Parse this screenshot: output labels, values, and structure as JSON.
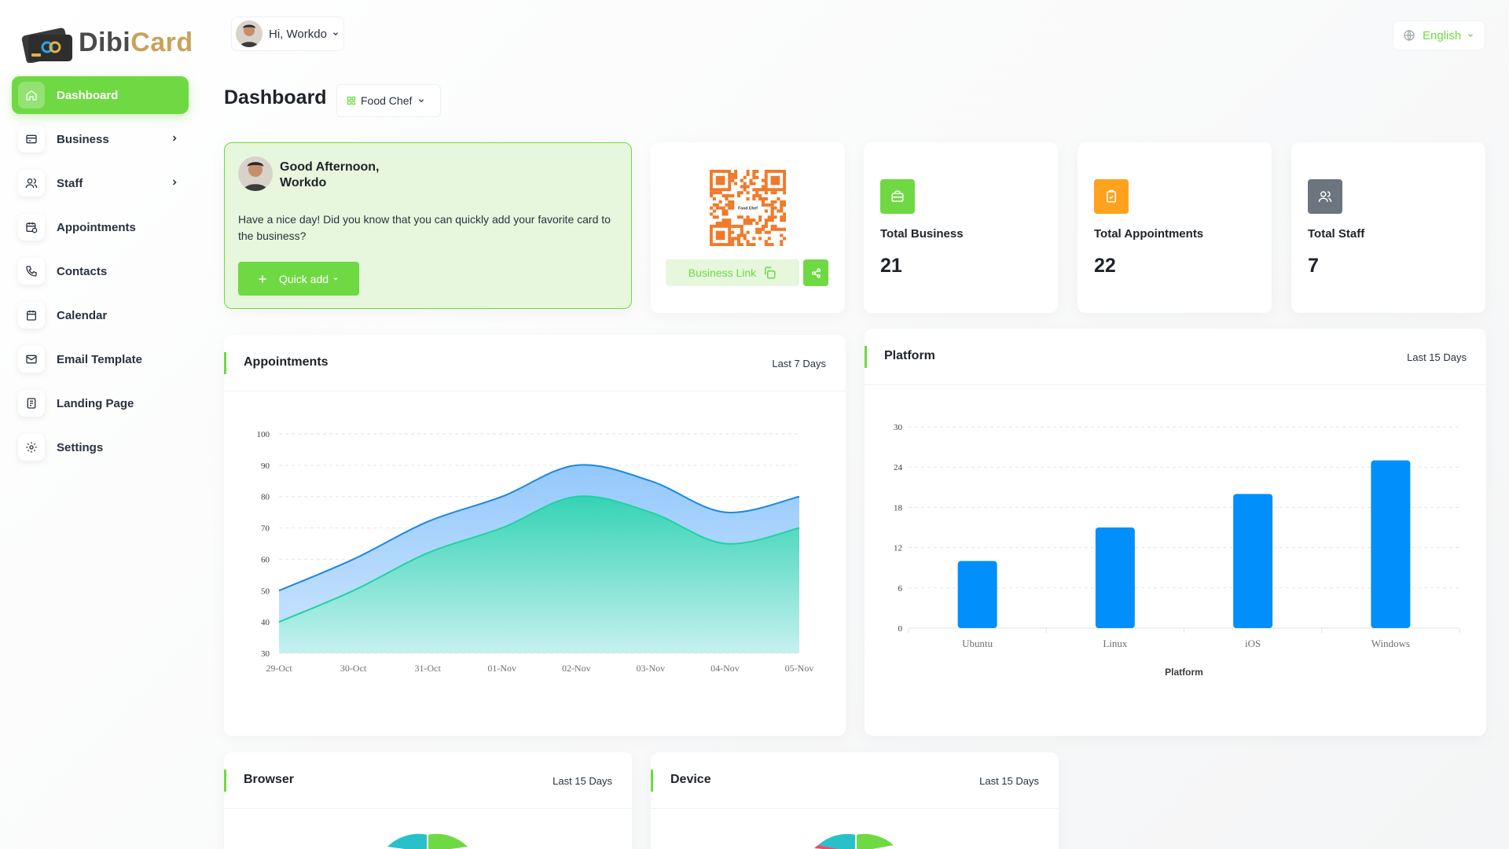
{
  "brand": {
    "name_part1": "Dibi",
    "name_part2": "Card"
  },
  "sidebar": {
    "items": [
      {
        "label": "Dashboard",
        "icon": "home-icon",
        "active": true
      },
      {
        "label": "Business",
        "icon": "business-card-icon",
        "has_children": true
      },
      {
        "label": "Staff",
        "icon": "users-icon",
        "has_children": true
      },
      {
        "label": "Appointments",
        "icon": "calendar-clock-icon"
      },
      {
        "label": "Contacts",
        "icon": "phone-icon"
      },
      {
        "label": "Calendar",
        "icon": "calendar-icon"
      },
      {
        "label": "Email Template",
        "icon": "mail-icon"
      },
      {
        "label": "Landing Page",
        "icon": "landing-page-icon"
      },
      {
        "label": "Settings",
        "icon": "gear-icon"
      }
    ]
  },
  "header": {
    "greeting": "Hi, Workdo",
    "language": "English"
  },
  "page": {
    "title": "Dashboard",
    "business_selected": "Food Chef"
  },
  "welcome": {
    "line1": "Good Afternoon,",
    "line2": "Workdo",
    "message": "Have a nice day! Did you know that you can quickly add your favorite card to the business?",
    "quick_add_label": "Quick add"
  },
  "qr": {
    "business_link_label": "Business Link",
    "qr_caption": "Food Chef"
  },
  "stats": [
    {
      "label": "Total Business",
      "value": "21",
      "color": "#6fd943",
      "icon": "briefcase-icon"
    },
    {
      "label": "Total Appointments",
      "value": "22",
      "color": "#ffa21d",
      "icon": "clipboard-check-icon"
    },
    {
      "label": "Total Staff",
      "value": "7",
      "color": "#6c757d",
      "icon": "users-icon"
    }
  ],
  "colors": {
    "accent": "#6fd943",
    "bar": "#008ffb",
    "area_top": "#1c87e5",
    "area_bottom": "#1fd3a2"
  },
  "chart_data": [
    {
      "type": "area",
      "title": "Appointments",
      "range": "Last 7 Days",
      "categories": [
        "29-Oct",
        "30-Oct",
        "31-Oct",
        "01-Nov",
        "02-Nov",
        "03-Nov",
        "04-Nov",
        "05-Nov"
      ],
      "series": [
        {
          "values": [
            50,
            60,
            72,
            80,
            90,
            85,
            75,
            80
          ]
        },
        {
          "values": [
            40,
            50,
            62,
            70,
            80,
            75,
            65,
            70
          ]
        }
      ],
      "ylim": [
        30,
        100
      ],
      "yticks": [
        30,
        40,
        50,
        60,
        70,
        80,
        90,
        100
      ],
      "grid": true
    },
    {
      "type": "bar",
      "title": "Platform",
      "range": "Last 15 Days",
      "categories": [
        "Ubuntu",
        "Linux",
        "iOS",
        "Windows"
      ],
      "values": [
        10,
        15,
        20,
        25
      ],
      "ylim": [
        0,
        30
      ],
      "yticks": [
        0,
        6,
        12,
        18,
        24,
        30
      ],
      "xlabel": "Platform",
      "grid": true
    },
    {
      "type": "pie",
      "title": "Browser",
      "range": "Last 15 Days"
    },
    {
      "type": "pie",
      "title": "Device",
      "range": "Last 15 Days"
    }
  ]
}
